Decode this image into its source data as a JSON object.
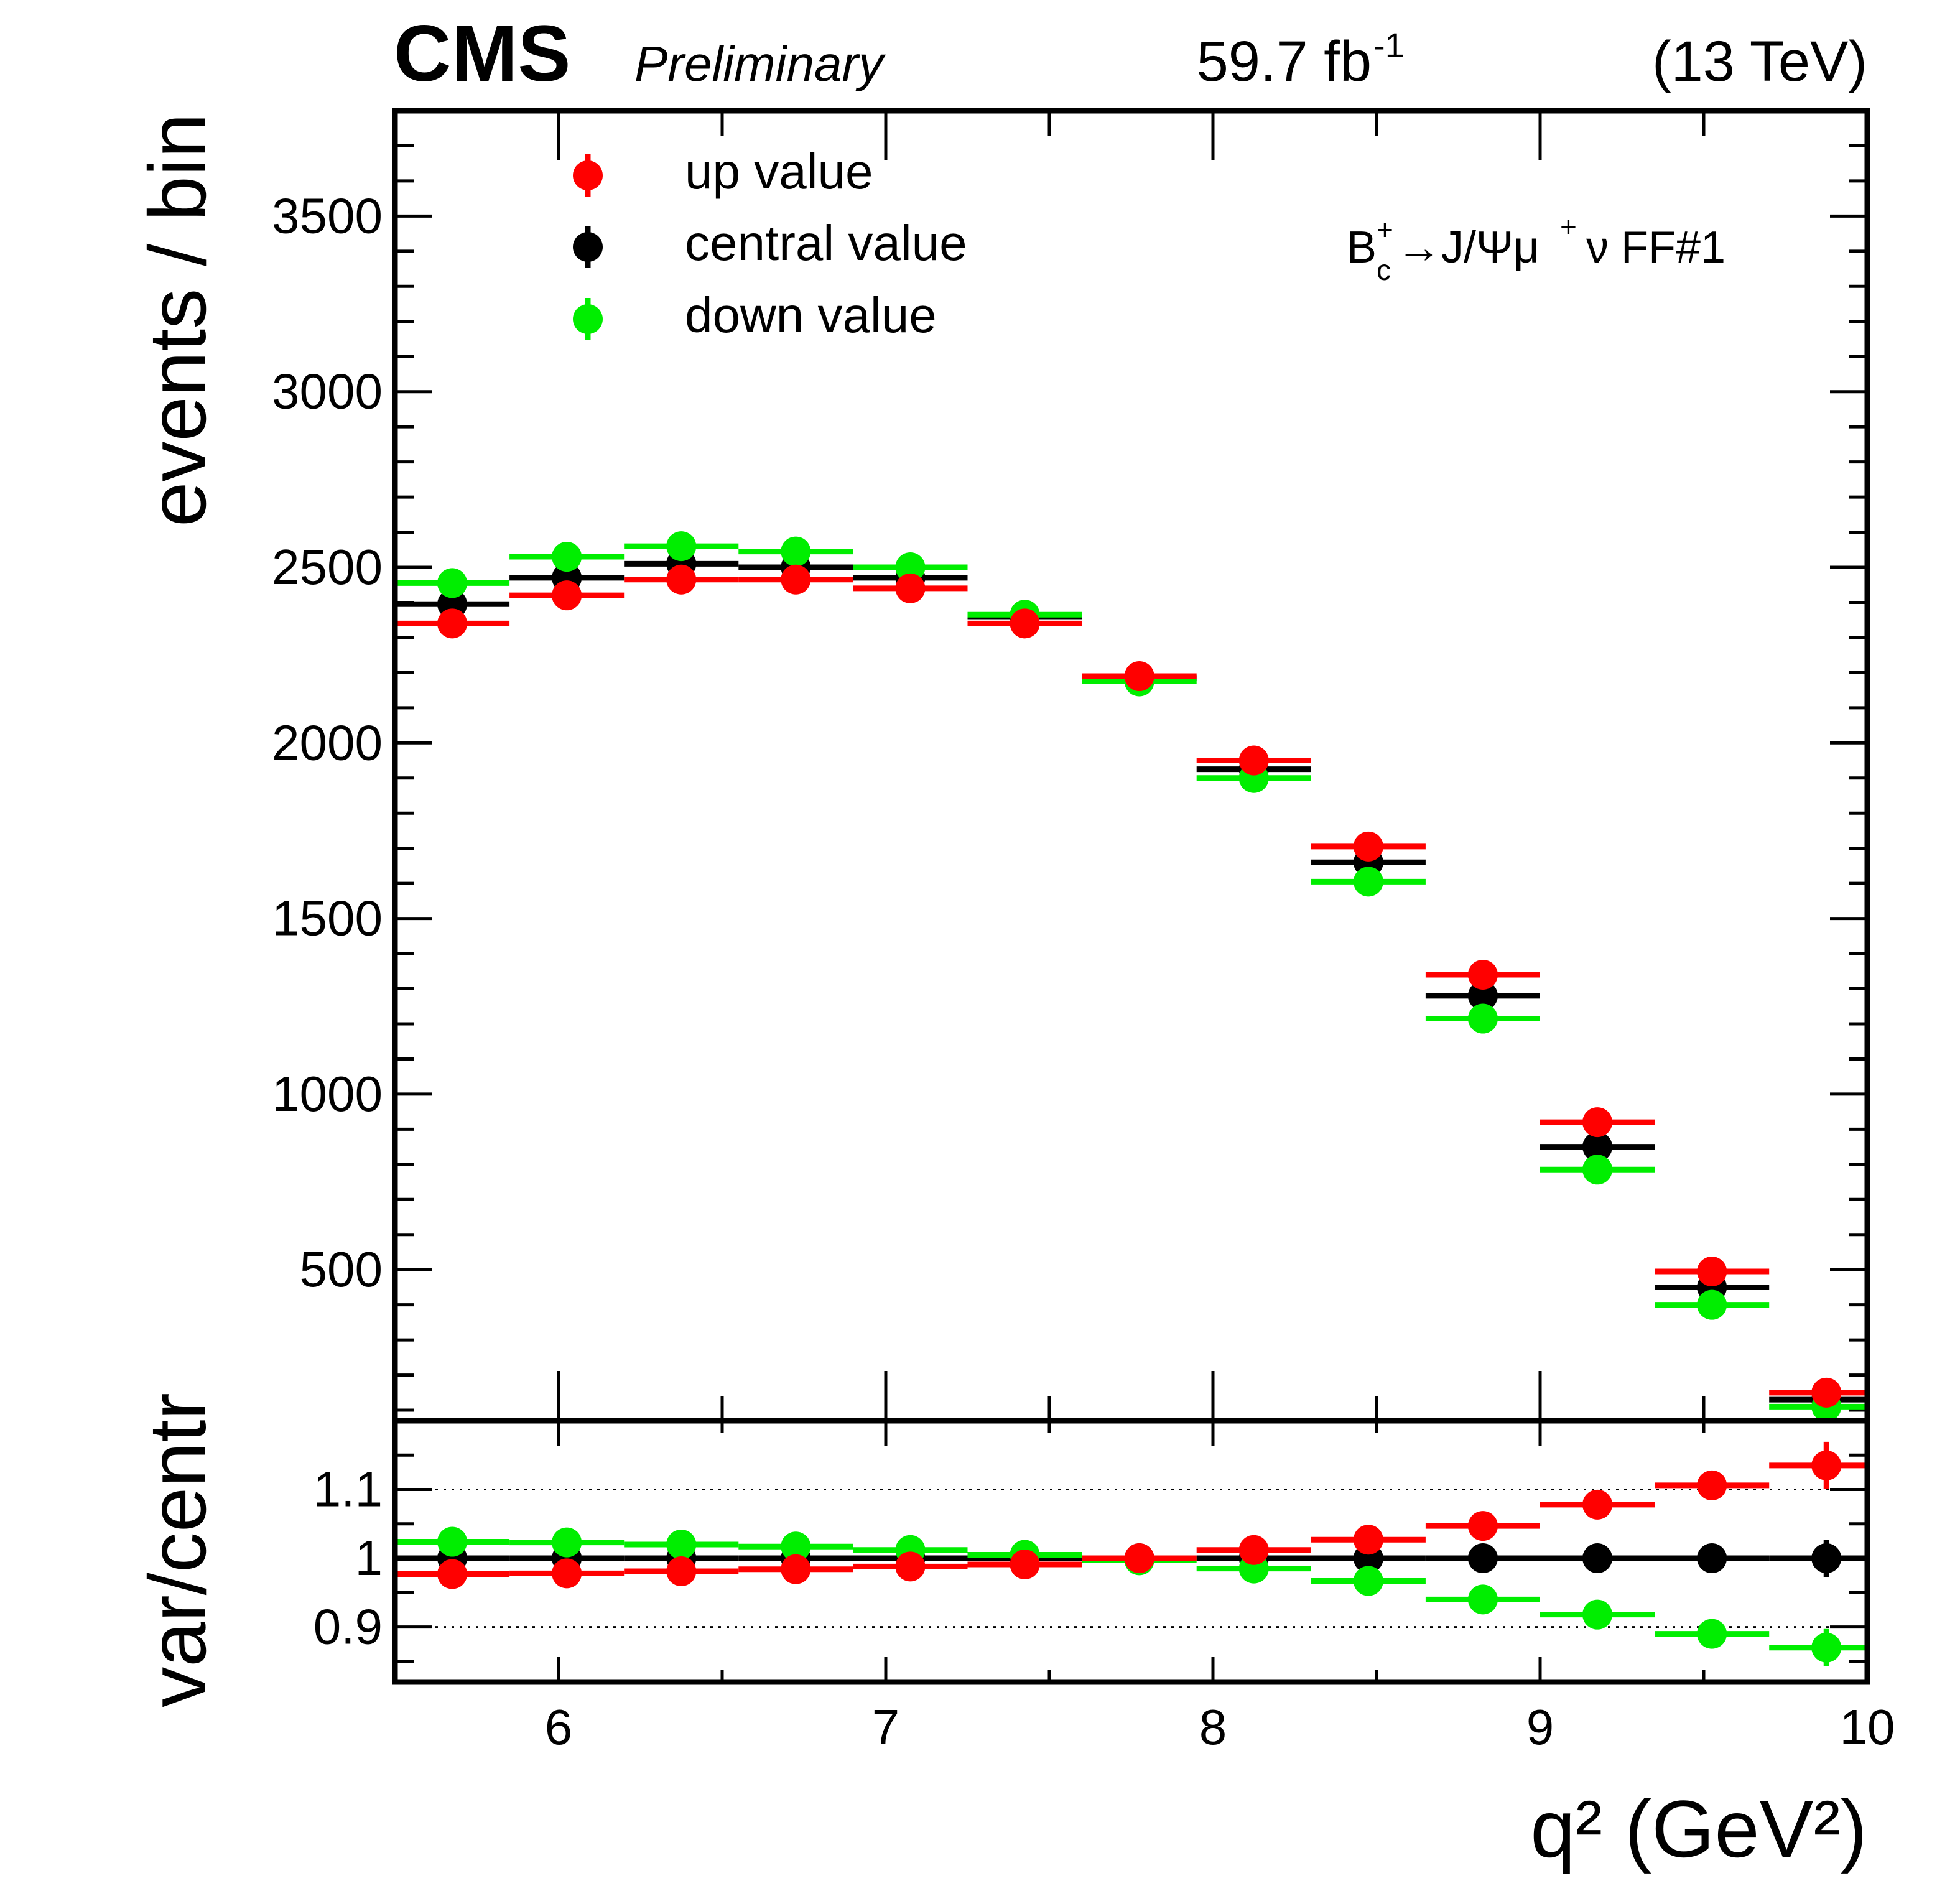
{
  "header": {
    "experiment": "CMS",
    "status": "Preliminary",
    "lumi_value": "59.7 fb",
    "lumi_exp": "-1",
    "energy": "(13 TeV)"
  },
  "legend": {
    "up": "up value",
    "central": "central value",
    "down": "down value"
  },
  "process_label": {
    "B": "B",
    "sup": "+",
    "sub": "c",
    "decay": "→J/Ψμ",
    "mu_sup": "+",
    "nu": "ν FF#1"
  },
  "colors": {
    "up": "#ff0000",
    "central": "#000000",
    "down": "#00ee00"
  },
  "chart_data": [
    {
      "type": "scatter",
      "name": "main",
      "ylabel": "events / bin",
      "xlim": [
        5.5,
        10.0
      ],
      "ylim": [
        70,
        3800
      ],
      "yticks": [
        500,
        1000,
        1500,
        2000,
        2500,
        3000,
        3500
      ],
      "bin_edges": [
        5.5,
        5.85,
        6.2,
        6.55,
        6.9,
        7.25,
        7.6,
        7.95,
        8.3,
        8.65,
        9.0,
        9.35,
        9.7,
        10.05
      ],
      "x": [
        5.675,
        6.025,
        6.375,
        6.725,
        7.075,
        7.425,
        7.775,
        8.125,
        8.475,
        8.825,
        9.175,
        9.525,
        9.875
      ],
      "series": [
        {
          "name": "up value",
          "key": "up",
          "values": [
            2340,
            2420,
            2465,
            2465,
            2440,
            2340,
            2190,
            1950,
            1705,
            1340,
            920,
            495,
            150
          ]
        },
        {
          "name": "central value",
          "key": "central",
          "values": [
            2395,
            2470,
            2510,
            2500,
            2470,
            2360,
            2185,
            1925,
            1660,
            1280,
            850,
            450,
            130
          ]
        },
        {
          "name": "down value",
          "key": "down",
          "values": [
            2455,
            2530,
            2560,
            2545,
            2500,
            2365,
            2175,
            1900,
            1605,
            1215,
            785,
            400,
            110
          ]
        }
      ]
    },
    {
      "type": "scatter",
      "name": "ratio",
      "ylabel": "var/centr",
      "xlabel": "q² (GeV²)",
      "xlim": [
        5.5,
        10.0
      ],
      "ylim": [
        0.82,
        1.2
      ],
      "yticks": [
        0.9,
        1,
        1.1
      ],
      "ytick_labels": [
        "0.9",
        "1",
        "1.1"
      ],
      "xticks": [
        6,
        7,
        8,
        9,
        10
      ],
      "xtick_labels": [
        "6",
        "7",
        "8",
        "9",
        "10"
      ],
      "gridlines": [
        0.9,
        1.1
      ],
      "series": [
        {
          "name": "up value",
          "key": "up",
          "values": [
            0.977,
            0.978,
            0.981,
            0.984,
            0.988,
            0.991,
            1.0,
            1.012,
            1.027,
            1.047,
            1.078,
            1.106,
            1.135
          ]
        },
        {
          "name": "central value",
          "key": "central",
          "values": [
            1,
            1,
            1,
            1,
            1,
            1,
            1,
            1,
            1,
            1,
            1,
            1,
            1
          ]
        },
        {
          "name": "down value",
          "key": "down",
          "values": [
            1.024,
            1.023,
            1.02,
            1.017,
            1.012,
            1.005,
            0.997,
            0.985,
            0.967,
            0.94,
            0.918,
            0.89,
            0.87
          ]
        }
      ]
    }
  ]
}
